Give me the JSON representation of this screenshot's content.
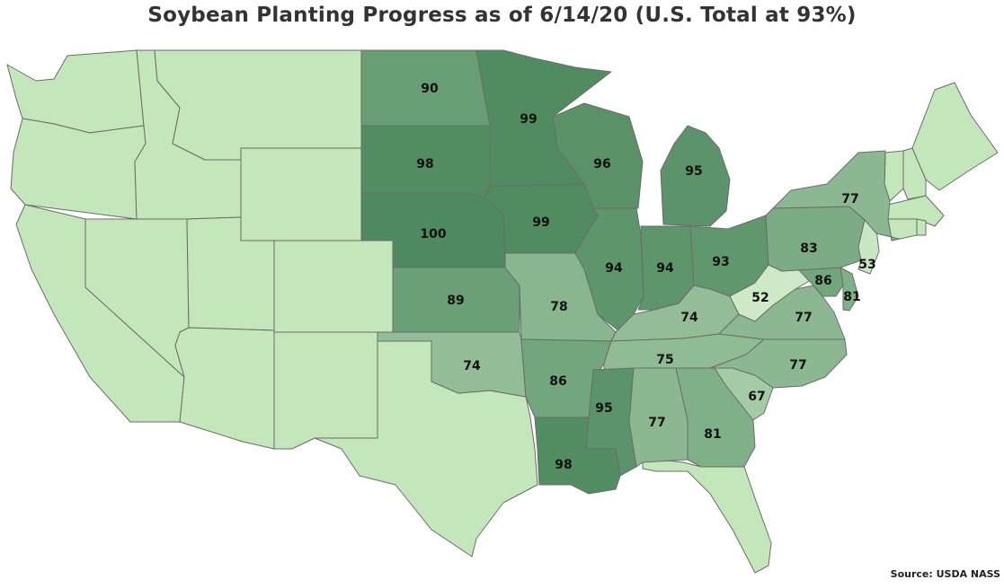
{
  "title": "Soybean Planting Progress as of 6/14/20 (U.S. Total at 93%)",
  "source": "Source: USDA NASS",
  "colors": {
    "no_data": "#c4e6bb",
    "low": "#d2edc9",
    "high": "#4e8a5f"
  },
  "scale": {
    "min": 50,
    "max": 100
  },
  "states": [
    {
      "id": "ND",
      "value": 90
    },
    {
      "id": "MN",
      "value": 99
    },
    {
      "id": "SD",
      "value": 98
    },
    {
      "id": "WI",
      "value": 96
    },
    {
      "id": "NE",
      "value": 100
    },
    {
      "id": "IA",
      "value": 99
    },
    {
      "id": "MI",
      "value": 95
    },
    {
      "id": "NY",
      "value": 77
    },
    {
      "id": "PA",
      "value": 83
    },
    {
      "id": "IL",
      "value": 94
    },
    {
      "id": "IN",
      "value": 94
    },
    {
      "id": "OH",
      "value": 93
    },
    {
      "id": "NJ",
      "value": 53
    },
    {
      "id": "KS",
      "value": 89
    },
    {
      "id": "MO",
      "value": 78
    },
    {
      "id": "WV",
      "value": 52
    },
    {
      "id": "MD",
      "value": 86
    },
    {
      "id": "DE",
      "value": 81
    },
    {
      "id": "KY",
      "value": 74
    },
    {
      "id": "VA",
      "value": 77
    },
    {
      "id": "OK",
      "value": 74
    },
    {
      "id": "TN",
      "value": 75
    },
    {
      "id": "NC",
      "value": 77
    },
    {
      "id": "AR",
      "value": 86
    },
    {
      "id": "SC",
      "value": 67
    },
    {
      "id": "MS",
      "value": 95
    },
    {
      "id": "AL",
      "value": 77
    },
    {
      "id": "GA",
      "value": 81
    },
    {
      "id": "LA",
      "value": 98
    }
  ]
}
